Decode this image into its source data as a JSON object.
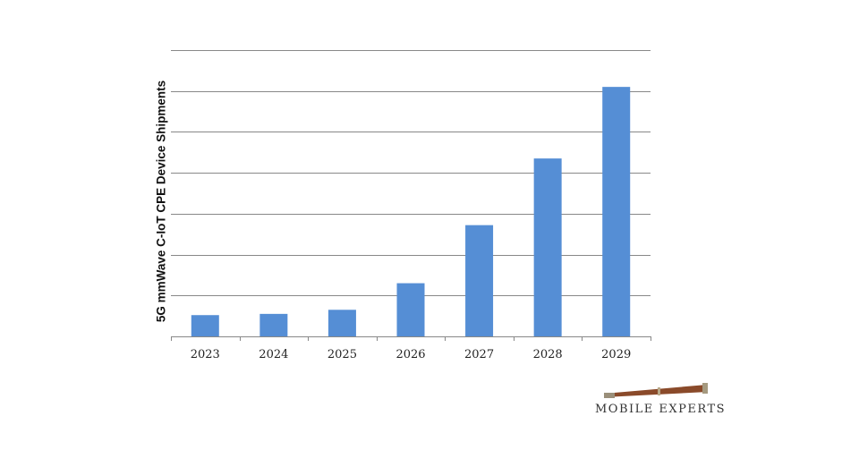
{
  "chart_data": {
    "type": "bar",
    "title": "",
    "xlabel": "",
    "ylabel": "5G mmWave C-IoT CPE Device Shipments",
    "categories": [
      "2023",
      "2024",
      "2025",
      "2026",
      "2027",
      "2028",
      "2029"
    ],
    "values": [
      0.52,
      0.55,
      0.65,
      1.3,
      2.72,
      4.35,
      6.1
    ],
    "ylim": [
      0,
      7
    ],
    "y_tick_labels_shown": false,
    "grid": true,
    "bar_color": "#558ED5"
  },
  "logo": {
    "text": "MOBILE EXPERTS"
  }
}
